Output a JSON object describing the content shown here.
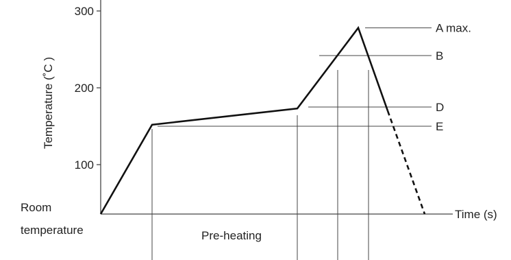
{
  "chart_data": {
    "type": "line",
    "ylabel": "Temperature (˚C )",
    "xlabel": "Time (s)",
    "y_ticks": [
      {
        "value": 300,
        "label": "300"
      },
      {
        "value": 200,
        "label": "200"
      },
      {
        "value": 100,
        "label": "100"
      }
    ],
    "room_temperature_label": [
      "Room",
      "temperature"
    ],
    "profile_points": [
      {
        "point": "start",
        "y": 40
      },
      {
        "point": "end-of-ramp",
        "y": 152
      },
      {
        "point": "end-of-preheat",
        "y": 173
      },
      {
        "point": "peak",
        "y": 278
      },
      {
        "point": "cooling",
        "y": 170
      },
      {
        "point": "end",
        "y": 40
      }
    ],
    "reference_levels": [
      {
        "label": "A max.",
        "y": 278
      },
      {
        "label": "B",
        "y": 242
      },
      {
        "label": "D",
        "y": 175
      },
      {
        "label": "E",
        "y": 150
      }
    ],
    "regions": [
      {
        "label": "Pre-heating"
      }
    ],
    "colors": {
      "line": "#111111",
      "guide": "#444444"
    }
  }
}
